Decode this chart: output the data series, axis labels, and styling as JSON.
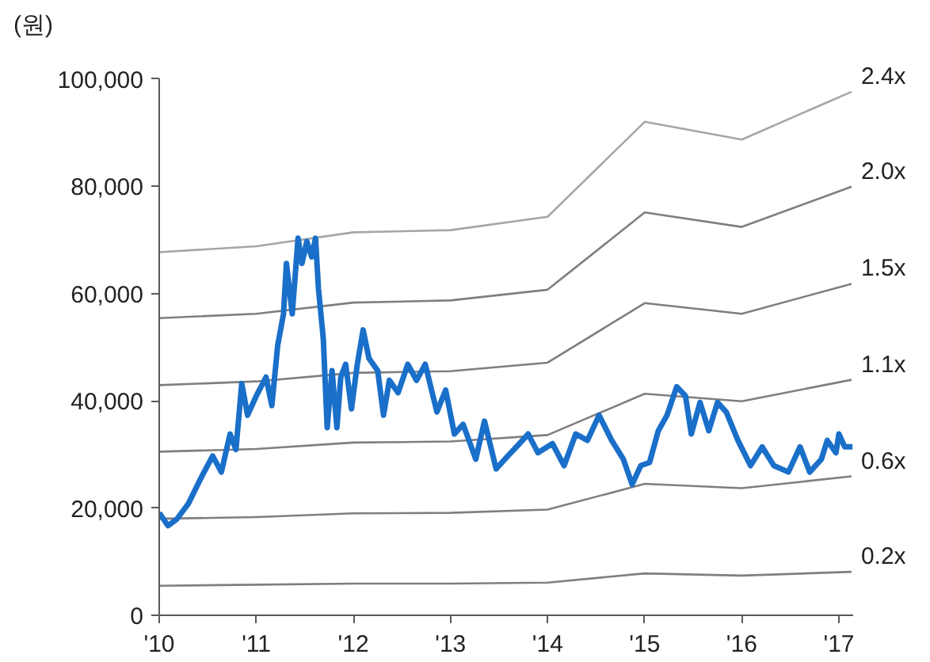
{
  "chart_data": {
    "type": "line",
    "ylabel": "(원)",
    "xlim": [
      2010,
      2017.15
    ],
    "ylim": [
      0,
      100000
    ],
    "xticks": [
      {
        "value": 2010,
        "label": "'10"
      },
      {
        "value": 2011,
        "label": "'11"
      },
      {
        "value": 2012,
        "label": "'12"
      },
      {
        "value": 2013,
        "label": "'13"
      },
      {
        "value": 2014,
        "label": "'14"
      },
      {
        "value": 2015,
        "label": "'15"
      },
      {
        "value": 2016,
        "label": "'16"
      },
      {
        "value": 2017,
        "label": "'17"
      }
    ],
    "yticks": [
      {
        "value": 0,
        "label": "0"
      },
      {
        "value": 20000,
        "label": "20,000"
      },
      {
        "value": 40000,
        "label": "40,000"
      },
      {
        "value": 60000,
        "label": "60,000"
      },
      {
        "value": 80000,
        "label": "80,000"
      },
      {
        "value": 100000,
        "label": "100,000"
      }
    ],
    "grid": false,
    "marker": "none",
    "line_style": "solid",
    "series": [
      {
        "name": "2.4x",
        "color": "#a6a6a6",
        "x": [
          2010,
          2011,
          2012,
          2013,
          2014,
          2015,
          2016,
          2017.13
        ],
        "values": [
          67700,
          68800,
          71400,
          71800,
          74300,
          92000,
          88700,
          97600
        ]
      },
      {
        "name": "2.0x",
        "color": "#7f7f7f",
        "x": [
          2010,
          2011,
          2012,
          2013,
          2014,
          2015,
          2016,
          2017.13
        ],
        "values": [
          55400,
          56200,
          58300,
          58700,
          60700,
          75100,
          72400,
          79900
        ]
      },
      {
        "name": "1.5x",
        "color": "#7f7f7f",
        "x": [
          2010,
          2011,
          2012,
          2013,
          2014,
          2015,
          2016,
          2017.13
        ],
        "values": [
          42900,
          43600,
          45200,
          45500,
          47100,
          58200,
          56200,
          61800
        ]
      },
      {
        "name": "1.1x",
        "color": "#7f7f7f",
        "x": [
          2010,
          2011,
          2012,
          2013,
          2014,
          2015,
          2016,
          2017.13
        ],
        "values": [
          30500,
          31000,
          32200,
          32400,
          33600,
          41300,
          39900,
          43900
        ]
      },
      {
        "name": "0.6x",
        "color": "#7f7f7f",
        "x": [
          2010,
          2011,
          2012,
          2013,
          2014,
          2015,
          2016,
          2017.13
        ],
        "values": [
          18000,
          18300,
          19000,
          19100,
          19700,
          24500,
          23700,
          25900
        ]
      },
      {
        "name": "0.2x",
        "color": "#7f7f7f",
        "x": [
          2010,
          2011,
          2012,
          2013,
          2014,
          2015,
          2016,
          2017.13
        ],
        "values": [
          5500,
          5700,
          5900,
          5900,
          6100,
          7800,
          7400,
          8100
        ]
      },
      {
        "color": "#1a6fc9",
        "x": [
          2010.0,
          2010.09,
          2010.18,
          2010.3,
          2010.43,
          2010.55,
          2010.64,
          2010.73,
          2010.79,
          2010.85,
          2010.91,
          2011.0,
          2011.1,
          2011.16,
          2011.22,
          2011.28,
          2011.31,
          2011.37,
          2011.43,
          2011.47,
          2011.52,
          2011.57,
          2011.61,
          2011.64,
          2011.69,
          2011.73,
          2011.78,
          2011.83,
          2011.87,
          2011.92,
          2011.98,
          2012.04,
          2012.1,
          2012.16,
          2012.25,
          2012.31,
          2012.37,
          2012.46,
          2012.56,
          2012.65,
          2012.74,
          2012.86,
          2012.95,
          2013.04,
          2013.13,
          2013.26,
          2013.35,
          2013.47,
          2013.59,
          2013.71,
          2013.8,
          2013.9,
          2014.05,
          2014.17,
          2014.29,
          2014.41,
          2014.53,
          2014.66,
          2014.78,
          2014.87,
          2014.96,
          2015.05,
          2015.14,
          2015.23,
          2015.33,
          2015.42,
          2015.48,
          2015.57,
          2015.66,
          2015.75,
          2015.84,
          2015.96,
          2016.09,
          2016.21,
          2016.33,
          2016.48,
          2016.6,
          2016.7,
          2016.82,
          2016.88,
          2016.97,
          2017.0,
          2017.06,
          2017.14
        ],
        "values": [
          19100,
          16700,
          17900,
          20800,
          25600,
          29700,
          26700,
          33800,
          30900,
          43200,
          37300,
          40900,
          44400,
          39100,
          50300,
          56200,
          65600,
          56200,
          70300,
          65600,
          69700,
          66800,
          70300,
          60900,
          51500,
          35000,
          45600,
          35000,
          44400,
          46800,
          38500,
          46800,
          53200,
          47900,
          45600,
          37300,
          43800,
          41500,
          46800,
          43800,
          46800,
          37900,
          42000,
          33800,
          35600,
          29100,
          36200,
          27300,
          29700,
          32000,
          33800,
          30300,
          32000,
          27900,
          33800,
          32600,
          37300,
          32600,
          29100,
          24400,
          27900,
          28500,
          34400,
          37300,
          42600,
          40900,
          33800,
          39700,
          34400,
          39700,
          37900,
          32600,
          27900,
          31400,
          27900,
          26700,
          31400,
          26700,
          29100,
          32600,
          30300,
          33800,
          31400,
          31400
        ]
      }
    ]
  }
}
